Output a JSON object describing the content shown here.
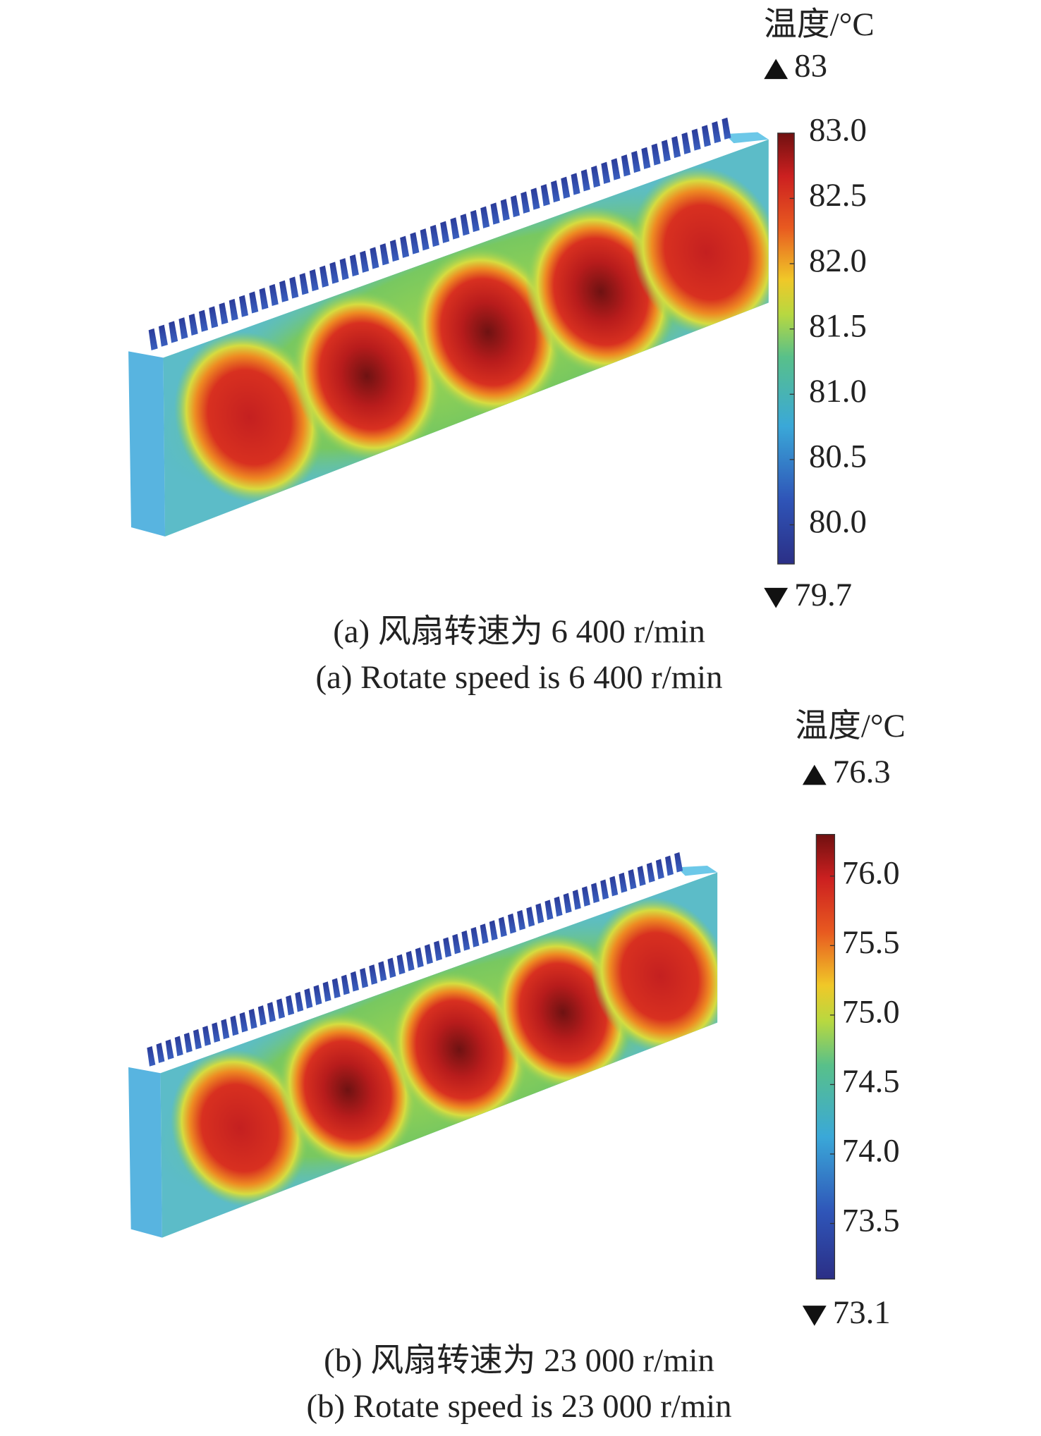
{
  "panels": [
    {
      "colorbar_title": "温度/°C",
      "max": 83,
      "min": 79.7,
      "ticks": [
        {
          "value": 83,
          "label": "83.0"
        },
        {
          "value": 82.5,
          "label": "82.5"
        },
        {
          "value": 82,
          "label": "82.0"
        },
        {
          "value": 81.5,
          "label": "81.5"
        },
        {
          "value": 81,
          "label": "81.0"
        },
        {
          "value": 80.5,
          "label": "80.5"
        },
        {
          "value": 80,
          "label": "80.0"
        }
      ],
      "caption_cn": "(a) 风扇转速为 6 400 r/min",
      "caption_en": "(a) Rotate speed is 6 400 r/min"
    },
    {
      "colorbar_title": "温度/°C",
      "max": 76.3,
      "min": 73.1,
      "ticks": [
        {
          "value": 76,
          "label": "76.0"
        },
        {
          "value": 75.5,
          "label": "75.5"
        },
        {
          "value": 75,
          "label": "75.0"
        },
        {
          "value": 74.5,
          "label": "74.5"
        },
        {
          "value": 74,
          "label": "74.0"
        },
        {
          "value": 73.5,
          "label": "73.5"
        }
      ],
      "caption_cn": "(b) 风扇转速为 23 000 r/min",
      "caption_en": "(b) Rotate speed is 23 000 r/min"
    }
  ]
}
